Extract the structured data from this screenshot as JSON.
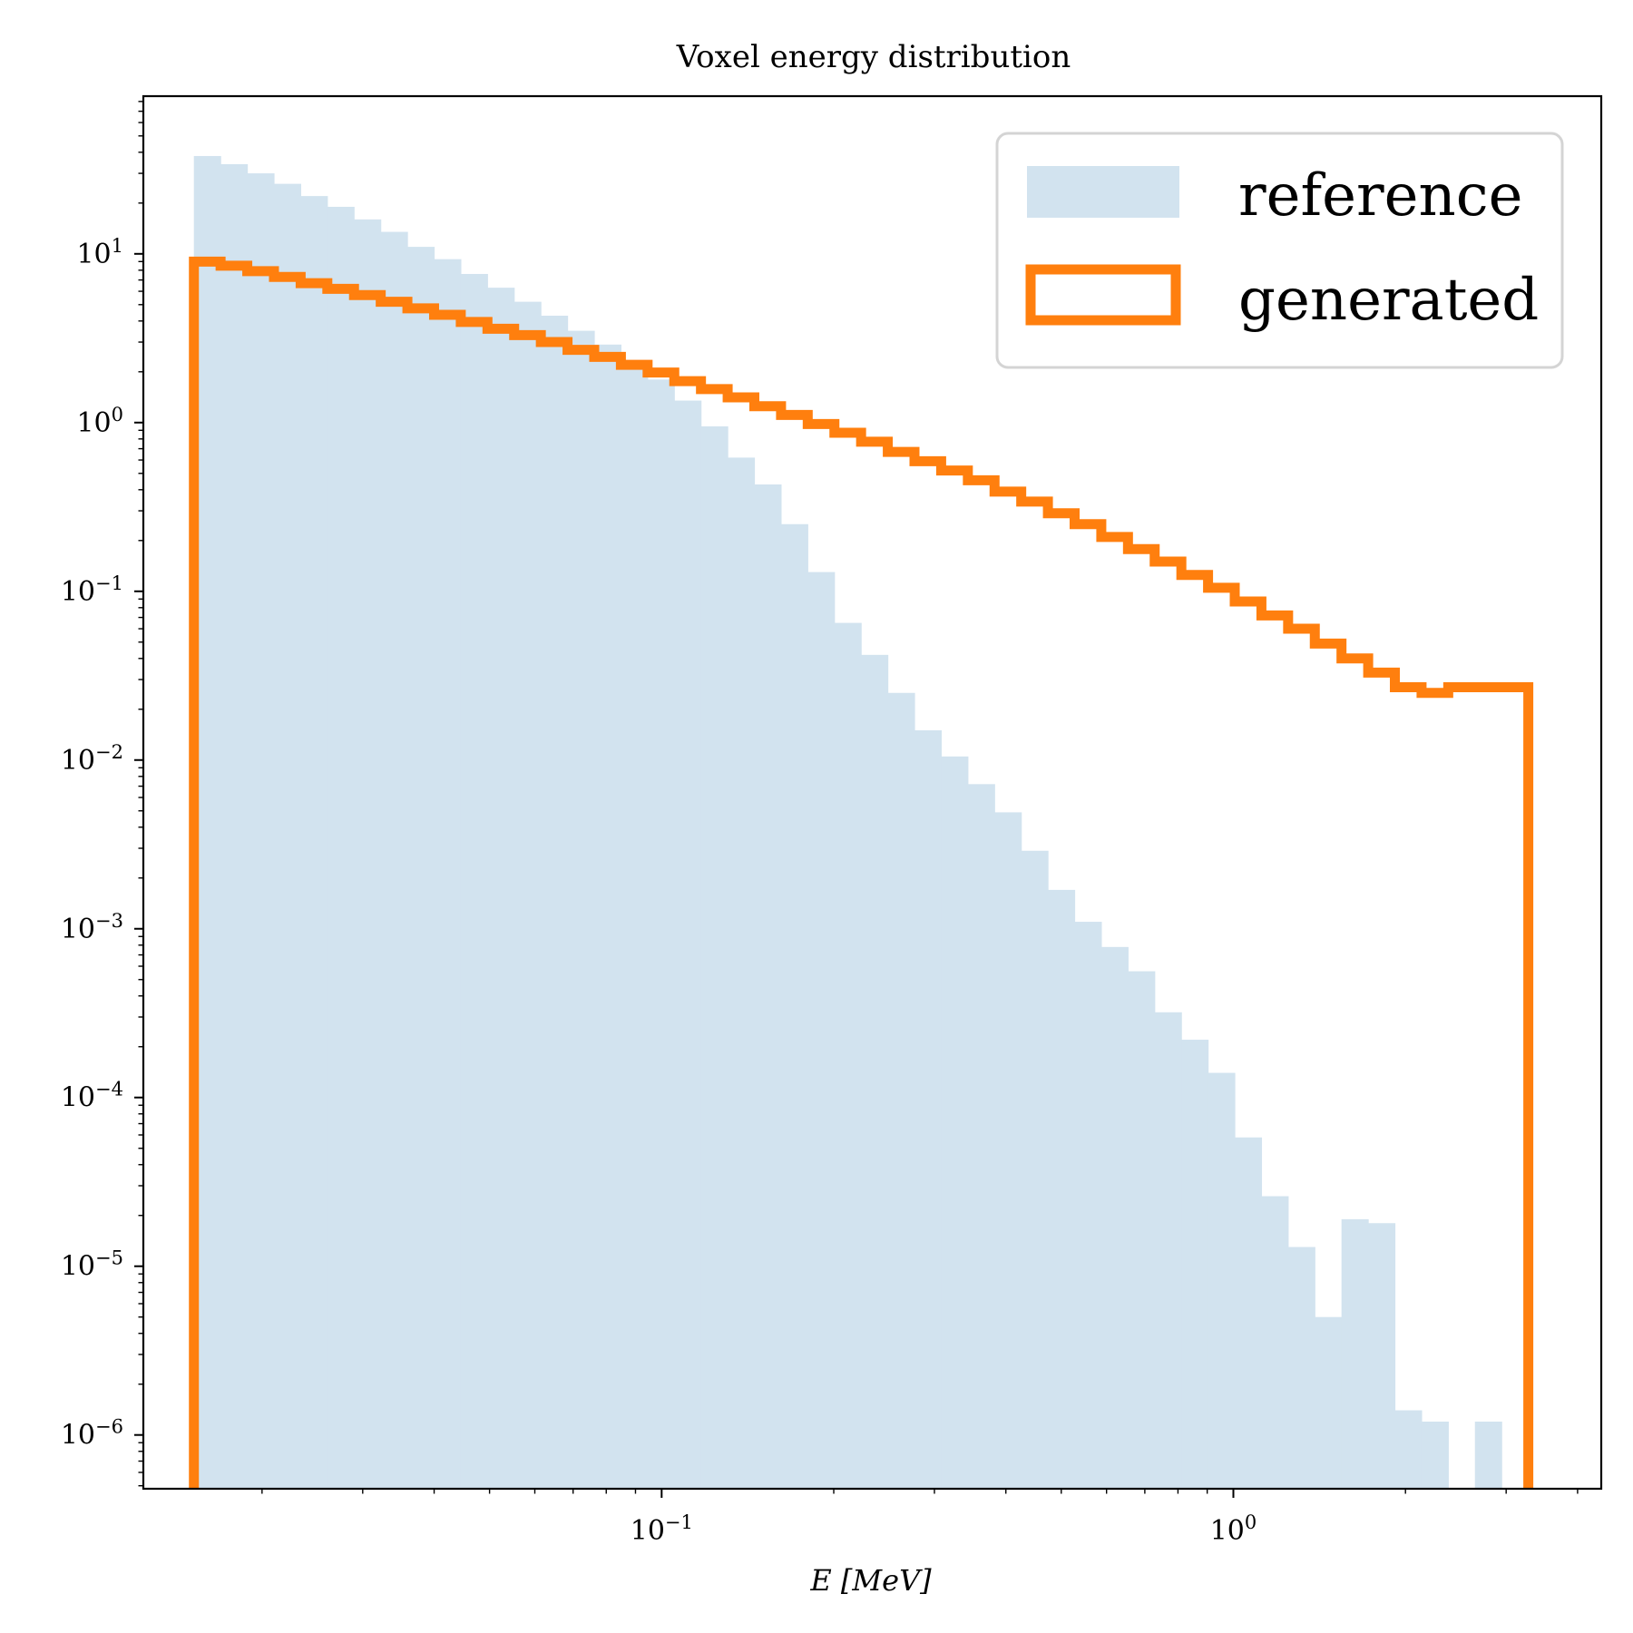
{
  "chart_data": {
    "type": "histogram",
    "title": "Voxel energy distribution",
    "xlabel": "E [MeV]",
    "ylabel": "",
    "xscale": "log",
    "yscale": "log",
    "xlim": [
      0.0124,
      4.4
    ],
    "ylim": [
      4.8e-07,
      86
    ],
    "x_ticks": [
      {
        "value": 0.1,
        "label": "10",
        "exp": "−1"
      },
      {
        "value": 1,
        "label": "10",
        "exp": "0"
      }
    ],
    "y_ticks": [
      {
        "value": 10,
        "label": "10",
        "exp": "1"
      },
      {
        "value": 1,
        "label": "10",
        "exp": "0"
      },
      {
        "value": 0.1,
        "label": "10",
        "exp": "−1"
      },
      {
        "value": 0.01,
        "label": "10",
        "exp": "−2"
      },
      {
        "value": 0.001,
        "label": "10",
        "exp": "−3"
      },
      {
        "value": 0.0001,
        "label": "10",
        "exp": "−4"
      },
      {
        "value": 1e-05,
        "label": "10",
        "exp": "−5"
      },
      {
        "value": 1e-06,
        "label": "10",
        "exp": "−6"
      }
    ],
    "bins": {
      "start": 0.0152,
      "end": 3.28,
      "count": 50
    },
    "series": [
      {
        "name": "reference",
        "style": "filled",
        "color": "#d2e3ef",
        "values": [
          38,
          34,
          30,
          26,
          22,
          19,
          16,
          13.5,
          11,
          9.3,
          7.6,
          6.3,
          5.2,
          4.3,
          3.5,
          2.9,
          2.3,
          1.8,
          1.35,
          0.95,
          0.62,
          0.43,
          0.25,
          0.13,
          0.065,
          0.042,
          0.025,
          0.015,
          0.0105,
          0.0072,
          0.0049,
          0.0029,
          0.0017,
          0.0011,
          0.00078,
          0.00056,
          0.00032,
          0.00022,
          0.00014,
          5.8e-05,
          2.6e-05,
          1.3e-05,
          5e-06,
          1.9e-05,
          1.8e-05,
          1.4e-06,
          1.2e-06,
          0,
          1.2e-06,
          0
        ]
      },
      {
        "name": "generated",
        "style": "step",
        "color": "#ff7f0e",
        "values": [
          9.0,
          8.5,
          7.9,
          7.3,
          6.7,
          6.2,
          5.7,
          5.2,
          4.75,
          4.35,
          3.95,
          3.6,
          3.3,
          3.0,
          2.7,
          2.45,
          2.2,
          1.98,
          1.76,
          1.58,
          1.41,
          1.25,
          1.11,
          0.98,
          0.87,
          0.77,
          0.67,
          0.59,
          0.52,
          0.455,
          0.39,
          0.34,
          0.29,
          0.25,
          0.21,
          0.178,
          0.15,
          0.125,
          0.105,
          0.087,
          0.072,
          0.06,
          0.049,
          0.04,
          0.033,
          0.027,
          0.025,
          0.027,
          0.027,
          0.027
        ]
      }
    ],
    "legend": {
      "position": "top-right",
      "entries": [
        "reference",
        "generated"
      ]
    }
  }
}
